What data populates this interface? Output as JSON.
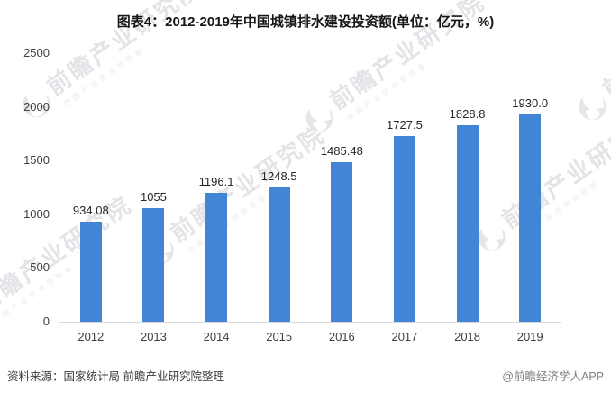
{
  "title": "图表4：2012-2019年中国城镇排水建设投资额(单位：亿元，%)",
  "chart_data": {
    "type": "bar",
    "title": "图表4：2012-2019年中国城镇排水建设投资额(单位：亿元，%)",
    "categories": [
      "2012",
      "2013",
      "2014",
      "2015",
      "2016",
      "2017",
      "2018",
      "2019"
    ],
    "values": [
      934.08,
      1055,
      1196.1,
      1248.5,
      1485.48,
      1727.5,
      1828.8,
      1930.0
    ],
    "value_labels": [
      "934.08",
      "1055",
      "1196.1",
      "1248.5",
      "1485.48",
      "1727.5",
      "1828.8",
      "1930.0"
    ],
    "unit": "亿元",
    "xlabel": "",
    "ylabel": "",
    "ylim": [
      0,
      2500
    ],
    "yticks": [
      2500,
      2000,
      1500,
      1000,
      500,
      0
    ],
    "ytick_labels": [
      "2500",
      "2000",
      "1500",
      "1000",
      "500",
      "0"
    ],
    "grid": false,
    "legend": false,
    "bar_color": "#4285d5"
  },
  "footer": {
    "source": "资料来源：国家统计局 前瞻产业研究院整理",
    "brand": "@前瞻经济学人APP"
  },
  "watermark": {
    "text": "前瞻产业研究院",
    "subtext": "中国产业咨询领导者"
  },
  "colors": {
    "bar": "#4285d5",
    "axis_line": "#d9d9d9",
    "tick_text": "#404040",
    "value_text": "#262626",
    "watermark_text": "#e4e4e8"
  }
}
